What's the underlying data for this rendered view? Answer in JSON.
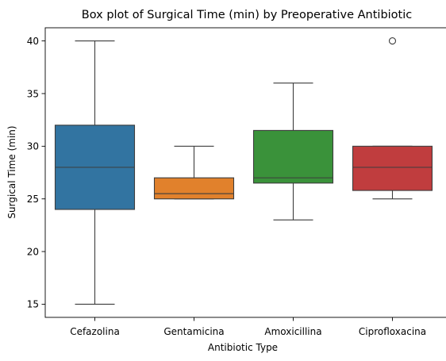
{
  "chart_data": {
    "type": "box",
    "title": "Box plot of Surgical Time (min) by Preoperative Antibiotic",
    "xlabel": "Antibiotic Type",
    "ylabel": "Surgical Time (min)",
    "ylim": [
      13.75,
      41.25
    ],
    "yticks": [
      15,
      20,
      25,
      30,
      35,
      40
    ],
    "grid": false,
    "categories": [
      "Cefazolina",
      "Gentamicina",
      "Amoxicillina",
      "Ciprofloxacina"
    ],
    "boxes": [
      {
        "category": "Cefazolina",
        "whisker_low": 15,
        "q1": 24,
        "median": 28,
        "q3": 32,
        "whisker_high": 40,
        "outliers": [],
        "color": "#3274a1"
      },
      {
        "category": "Gentamicina",
        "whisker_low": 25,
        "q1": 25,
        "median": 25.5,
        "q3": 27,
        "whisker_high": 30,
        "outliers": [],
        "color": "#e1812c"
      },
      {
        "category": "Amoxicillina",
        "whisker_low": 23,
        "q1": 26.5,
        "median": 27,
        "q3": 31.5,
        "whisker_high": 36,
        "outliers": [],
        "color": "#3a923a"
      },
      {
        "category": "Ciprofloxacina",
        "whisker_low": 25,
        "q1": 25.8,
        "median": 28,
        "q3": 30,
        "whisker_high": 30,
        "outliers": [
          40
        ],
        "color": "#c03d3e"
      }
    ]
  }
}
